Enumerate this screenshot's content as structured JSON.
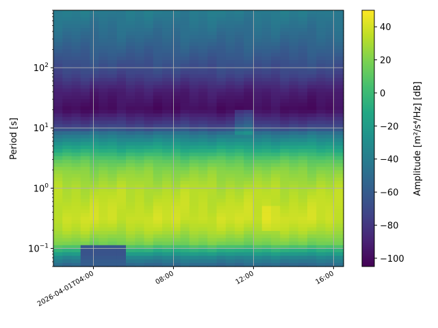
{
  "chart_data": {
    "type": "heatmap",
    "title": "",
    "ylabel": "Period [s]",
    "colorbar_label_main": "Amplitude ",
    "colorbar_label_unit": "[m²/s⁴/Hz] [dB]",
    "colormap": "viridis",
    "x_start_time": "2026-04-01T02:00",
    "x_end_time": "2026-04-01T16:30",
    "x_ticks": [
      "2026-04-01T04:00",
      "08:00",
      "12:00",
      "16:00"
    ],
    "x_tick_hours": [
      4,
      8,
      12,
      16
    ],
    "y_scale": "log",
    "ylim": [
      0.05,
      900
    ],
    "y_ticks": [
      {
        "value": 0.1,
        "base": "10",
        "exp": "−1"
      },
      {
        "value": 1,
        "base": "10",
        "exp": "0"
      },
      {
        "value": 10,
        "base": "10",
        "exp": "1"
      },
      {
        "value": 100,
        "base": "10",
        "exp": "2"
      }
    ],
    "color_range": [
      -105,
      50
    ],
    "colorbar_ticks": [
      40,
      20,
      0,
      -20,
      -40,
      -60,
      -80,
      -100
    ],
    "colorbar_tick_labels": [
      "40",
      "20",
      "0",
      "−20",
      "−40",
      "−60",
      "−80",
      "−100"
    ],
    "grid": true,
    "period_profile_db": [
      {
        "period": 0.05,
        "db": -55
      },
      {
        "period": 0.07,
        "db": -35
      },
      {
        "period": 0.09,
        "db": -10
      },
      {
        "period": 0.12,
        "db": 18
      },
      {
        "period": 0.2,
        "db": 32
      },
      {
        "period": 0.3,
        "db": 38
      },
      {
        "period": 0.5,
        "db": 36
      },
      {
        "period": 1.0,
        "db": 32
      },
      {
        "period": 2.0,
        "db": 22
      },
      {
        "period": 3.0,
        "db": 10
      },
      {
        "period": 5.0,
        "db": -18
      },
      {
        "period": 8.0,
        "db": -45
      },
      {
        "period": 10.0,
        "db": -70
      },
      {
        "period": 20.0,
        "db": -100
      },
      {
        "period": 40.0,
        "db": -92
      },
      {
        "period": 80.0,
        "db": -72
      },
      {
        "period": 150.0,
        "db": -62
      },
      {
        "period": 300.0,
        "db": -52
      },
      {
        "period": 900.0,
        "db": -40
      }
    ]
  }
}
